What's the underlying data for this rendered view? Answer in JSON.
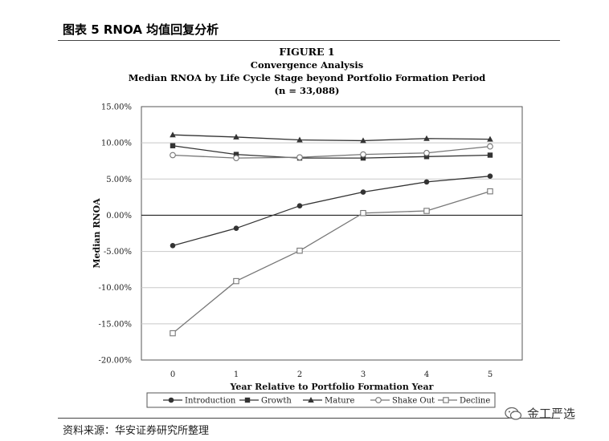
{
  "caption": "图表 5 RNOA 均值回复分析",
  "source": "资料来源：华安证券研究所整理",
  "watermark": "金工严选",
  "chart_data": {
    "type": "line",
    "title": "FIGURE 1",
    "subtitle_lines": [
      "Convergence Analysis",
      "Median RNOA by Life Cycle Stage beyond Portfolio Formation Period",
      "(n = 33,088)"
    ],
    "xlabel": "Year Relative to Portfolio Formation Year",
    "ylabel": "Median RNOA",
    "x": [
      0,
      1,
      2,
      3,
      4,
      5
    ],
    "x_tick_labels": [
      "0",
      "1",
      "2",
      "3",
      "4",
      "5"
    ],
    "ylim": [
      -20,
      15
    ],
    "y_ticks": [
      15,
      10,
      5,
      0,
      -5,
      -10,
      -15,
      -20
    ],
    "y_tick_labels": [
      "15.00%",
      "10.00%",
      "5.00%",
      "0.00%",
      "-5.00%",
      "-10.00%",
      "-15.00%",
      "-20.00%"
    ],
    "zero_line": true,
    "series": [
      {
        "name": "Introduction",
        "marker": "filled-circle",
        "color": "#333333",
        "values": [
          -4.2,
          -1.8,
          1.3,
          3.2,
          4.6,
          5.4
        ]
      },
      {
        "name": "Growth",
        "marker": "filled-square",
        "color": "#333333",
        "values": [
          9.6,
          8.4,
          7.9,
          7.9,
          8.1,
          8.3
        ]
      },
      {
        "name": "Mature",
        "marker": "filled-triangle",
        "color": "#333333",
        "values": [
          11.1,
          10.8,
          10.4,
          10.3,
          10.6,
          10.5
        ]
      },
      {
        "name": "Shake Out",
        "marker": "open-circle",
        "color": "#777777",
        "values": [
          8.3,
          7.9,
          8.0,
          8.4,
          8.6,
          9.5
        ]
      },
      {
        "name": "Decline",
        "marker": "open-square",
        "color": "#777777",
        "values": [
          -16.3,
          -9.1,
          -4.9,
          0.3,
          0.6,
          3.3
        ]
      }
    ]
  }
}
